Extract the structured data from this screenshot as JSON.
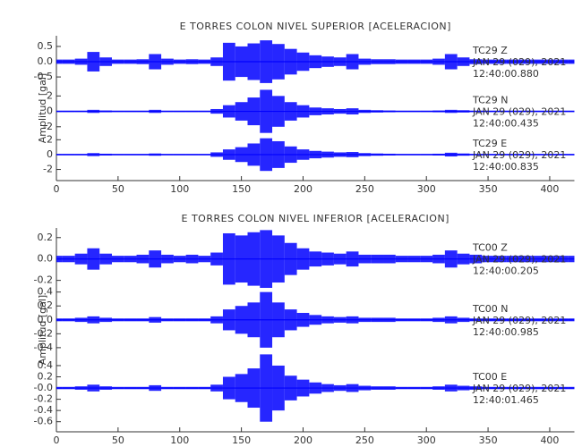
{
  "chart_data": [
    {
      "type": "envelope",
      "title": "E TORRES COLON NIVEL SUPERIOR [ACELERACION]",
      "ylabel": "Amplitud [gal]",
      "xlim": [
        0,
        420
      ],
      "xticks": [
        0,
        50,
        100,
        150,
        200,
        250,
        300,
        350,
        400
      ],
      "x": [
        0,
        10,
        20,
        30,
        40,
        50,
        60,
        70,
        80,
        90,
        100,
        110,
        120,
        130,
        140,
        150,
        160,
        170,
        180,
        190,
        200,
        210,
        220,
        230,
        240,
        250,
        260,
        270,
        280,
        290,
        300,
        310,
        320,
        330,
        340,
        350,
        360,
        370,
        380,
        390,
        400,
        410,
        420
      ],
      "series": [
        {
          "name": "TC29   Z",
          "date": "JAN 29 (029), 2021",
          "time": "12:40:00.880",
          "color": "#0000ff",
          "ylim": [
            -0.82,
            0.85
          ],
          "yticks": [
            0.5,
            {
              "value": 0,
              "label": "0.0"
            },
            -0.5
          ],
          "values": [
            0.07,
            0.07,
            0.1,
            0.32,
            0.14,
            0.07,
            0.07,
            0.08,
            0.25,
            0.1,
            0.07,
            0.08,
            0.07,
            0.14,
            0.62,
            0.5,
            0.6,
            0.7,
            0.58,
            0.42,
            0.3,
            0.21,
            0.17,
            0.14,
            0.25,
            0.1,
            0.08,
            0.08,
            0.07,
            0.07,
            0.07,
            0.1,
            0.25,
            0.14,
            0.08,
            0.07,
            0.07,
            0.07,
            0.07,
            0.07,
            0.07,
            0.07,
            0.07
          ]
        },
        {
          "name": "TC29   N",
          "date": "JAN 29 (029), 2021",
          "time": "12:40:00.435",
          "color": "#0000ff",
          "ylim": [
            -3.3,
            3.2
          ],
          "yticks": [
            2,
            0,
            -2
          ],
          "values": [
            0.1,
            0.1,
            0.1,
            0.2,
            0.12,
            0.1,
            0.1,
            0.1,
            0.2,
            0.1,
            0.1,
            0.1,
            0.1,
            0.3,
            0.8,
            1.2,
            1.8,
            2.8,
            2.0,
            1.2,
            0.8,
            0.5,
            0.4,
            0.3,
            0.4,
            0.2,
            0.15,
            0.12,
            0.1,
            0.1,
            0.1,
            0.12,
            0.2,
            0.15,
            0.1,
            0.1,
            0.1,
            0.1,
            0.1,
            0.1,
            0.1,
            0.1,
            0.1
          ]
        },
        {
          "name": "TC29   E",
          "date": "JAN 29 (029), 2021",
          "time": "12:40:00.835",
          "color": "#0000ff",
          "ylim": [
            -3.5,
            2.4
          ],
          "yticks": [
            2,
            0,
            -2
          ],
          "values": [
            0.1,
            0.1,
            0.1,
            0.2,
            0.12,
            0.1,
            0.1,
            0.1,
            0.15,
            0.1,
            0.1,
            0.1,
            0.1,
            0.3,
            0.7,
            1.0,
            1.5,
            2.2,
            1.8,
            1.1,
            0.7,
            0.5,
            0.4,
            0.3,
            0.35,
            0.2,
            0.15,
            0.12,
            0.1,
            0.1,
            0.1,
            0.12,
            0.25,
            0.15,
            0.1,
            0.1,
            0.1,
            0.1,
            0.1,
            0.1,
            0.1,
            0.1,
            0.1
          ]
        }
      ]
    },
    {
      "type": "envelope",
      "title": "E TORRES COLON NIVEL INFERIOR [ACELERACION]",
      "ylabel": "Amplitud [gal]",
      "xlim": [
        0,
        420
      ],
      "xticks": [
        0,
        50,
        100,
        150,
        200,
        250,
        300,
        350,
        400
      ],
      "x": [
        0,
        10,
        20,
        30,
        40,
        50,
        60,
        70,
        80,
        90,
        100,
        110,
        120,
        130,
        140,
        150,
        160,
        170,
        180,
        190,
        200,
        210,
        220,
        230,
        240,
        250,
        260,
        270,
        280,
        290,
        300,
        310,
        320,
        330,
        340,
        350,
        360,
        370,
        380,
        390,
        400,
        410,
        420
      ],
      "series": [
        {
          "name": "TC00   Z",
          "date": "JAN 29 (029), 2021",
          "time": "12:40:00.205",
          "color": "#0000ff",
          "ylim": [
            -0.27,
            0.29
          ],
          "yticks": [
            0.2,
            {
              "value": 0,
              "label": "0.0"
            },
            -0.2
          ],
          "values": [
            0.03,
            0.03,
            0.05,
            0.1,
            0.05,
            0.03,
            0.03,
            0.04,
            0.08,
            0.04,
            0.03,
            0.04,
            0.03,
            0.06,
            0.24,
            0.22,
            0.25,
            0.27,
            0.22,
            0.15,
            0.1,
            0.07,
            0.06,
            0.05,
            0.07,
            0.04,
            0.04,
            0.04,
            0.03,
            0.03,
            0.03,
            0.04,
            0.08,
            0.05,
            0.04,
            0.03,
            0.03,
            0.03,
            0.03,
            0.03,
            0.03,
            0.03,
            0.03
          ]
        },
        {
          "name": "TC00   N",
          "date": "JAN 29 (029), 2021",
          "time": "12:40:00.985",
          "color": "#0000ff",
          "ylim": [
            -0.44,
            0.46
          ],
          "yticks": [
            0.4,
            0.2,
            {
              "value": 0,
              "label": "0.0"
            },
            -0.2,
            -0.4
          ],
          "values": [
            0.02,
            0.02,
            0.03,
            0.05,
            0.03,
            0.02,
            0.02,
            0.02,
            0.04,
            0.02,
            0.02,
            0.02,
            0.02,
            0.05,
            0.15,
            0.2,
            0.25,
            0.4,
            0.25,
            0.15,
            0.1,
            0.07,
            0.05,
            0.04,
            0.05,
            0.03,
            0.03,
            0.03,
            0.02,
            0.02,
            0.02,
            0.03,
            0.05,
            0.03,
            0.02,
            0.02,
            0.02,
            0.02,
            0.02,
            0.02,
            0.02,
            0.02,
            0.02
          ]
        },
        {
          "name": "TC00   E",
          "date": "JAN 29 (029), 2021",
          "time": "12:40:01.465",
          "color": "#0000ff",
          "ylim": [
            -0.78,
            0.67
          ],
          "yticks": [
            0.4,
            0.2,
            {
              "value": 0,
              "label": "-0.0"
            },
            -0.2,
            -0.4,
            -0.6
          ],
          "values": [
            0.02,
            0.02,
            0.03,
            0.06,
            0.03,
            0.02,
            0.02,
            0.02,
            0.05,
            0.02,
            0.02,
            0.02,
            0.02,
            0.06,
            0.2,
            0.25,
            0.35,
            0.6,
            0.4,
            0.22,
            0.15,
            0.1,
            0.07,
            0.05,
            0.07,
            0.04,
            0.03,
            0.03,
            0.02,
            0.02,
            0.02,
            0.03,
            0.06,
            0.04,
            0.03,
            0.02,
            0.02,
            0.02,
            0.02,
            0.02,
            0.02,
            0.02,
            0.02
          ]
        }
      ]
    }
  ]
}
